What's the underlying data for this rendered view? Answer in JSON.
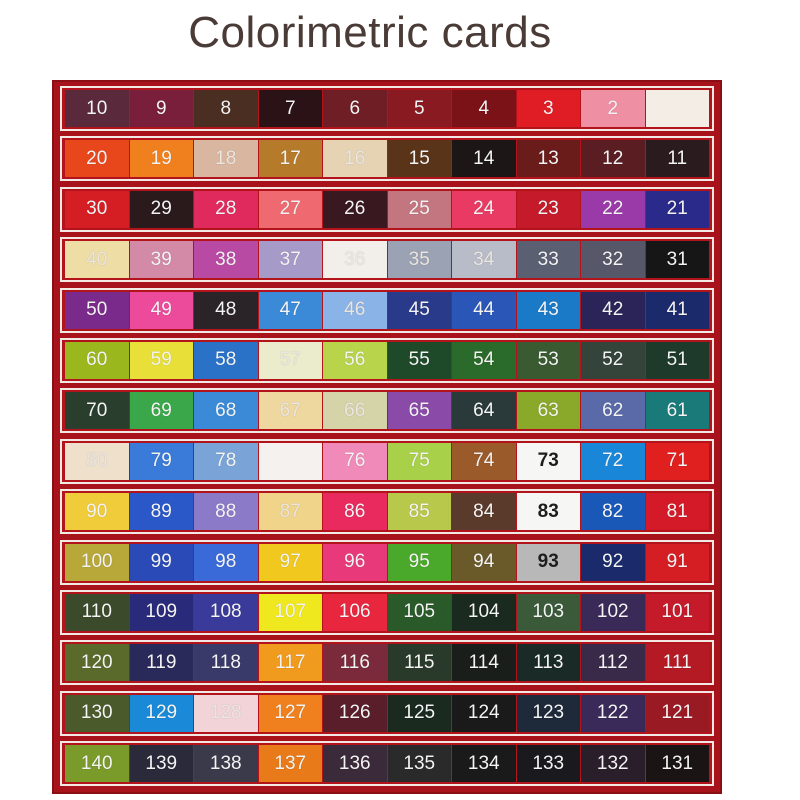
{
  "title": "Colorimetric cards",
  "board_color": "#a8121a",
  "rows": [
    [
      {
        "n": "10",
        "c": "#5a2a3c"
      },
      {
        "n": "9",
        "c": "#7a1f3b"
      },
      {
        "n": "8",
        "c": "#4a2e22"
      },
      {
        "n": "7",
        "c": "#2a1216"
      },
      {
        "n": "6",
        "c": "#6e1e24"
      },
      {
        "n": "5",
        "c": "#8a1a22"
      },
      {
        "n": "4",
        "c": "#7a1218"
      },
      {
        "n": "3",
        "c": "#e01c24"
      },
      {
        "n": "2",
        "c": "#ee8fa4"
      },
      {
        "n": "",
        "c": "#f3ede6"
      }
    ],
    [
      {
        "n": "20",
        "c": "#e8471c"
      },
      {
        "n": "19",
        "c": "#f0801e"
      },
      {
        "n": "18",
        "c": "#d9b6a0"
      },
      {
        "n": "17",
        "c": "#b57a2a"
      },
      {
        "n": "16",
        "c": "#e5d3b4"
      },
      {
        "n": "15",
        "c": "#5a3418"
      },
      {
        "n": "14",
        "c": "#1c1616"
      },
      {
        "n": "13",
        "c": "#6a1c1a"
      },
      {
        "n": "12",
        "c": "#5a1e22"
      },
      {
        "n": "11",
        "c": "#2a1c1e"
      }
    ],
    [
      {
        "n": "30",
        "c": "#d41e24"
      },
      {
        "n": "29",
        "c": "#2a1a1c"
      },
      {
        "n": "28",
        "c": "#e02a5e"
      },
      {
        "n": "27",
        "c": "#ee6a70"
      },
      {
        "n": "26",
        "c": "#3a1820"
      },
      {
        "n": "25",
        "c": "#c47680"
      },
      {
        "n": "24",
        "c": "#e83a62"
      },
      {
        "n": "23",
        "c": "#c41a2a"
      },
      {
        "n": "22",
        "c": "#9a3aa8"
      },
      {
        "n": "21",
        "c": "#2a2a8a"
      }
    ],
    [
      {
        "n": "40",
        "c": "#eedda4"
      },
      {
        "n": "39",
        "c": "#d28aa6"
      },
      {
        "n": "38",
        "c": "#b84aa4"
      },
      {
        "n": "37",
        "c": "#a69ac8"
      },
      {
        "n": "36",
        "c": "#f2efea"
      },
      {
        "n": "35",
        "c": "#9aa2b4"
      },
      {
        "n": "34",
        "c": "#b8bcc8"
      },
      {
        "n": "33",
        "c": "#5a6072"
      },
      {
        "n": "32",
        "c": "#56586a"
      },
      {
        "n": "31",
        "c": "#161616"
      }
    ],
    [
      {
        "n": "50",
        "c": "#7a2a8a"
      },
      {
        "n": "49",
        "c": "#ec4a9a"
      },
      {
        "n": "48",
        "c": "#2a2428"
      },
      {
        "n": "47",
        "c": "#3a8ad8"
      },
      {
        "n": "46",
        "c": "#8ab4e8"
      },
      {
        "n": "45",
        "c": "#2a3a8a"
      },
      {
        "n": "44",
        "c": "#2a56b8"
      },
      {
        "n": "43",
        "c": "#1a7ac8"
      },
      {
        "n": "42",
        "c": "#2a2458"
      },
      {
        "n": "41",
        "c": "#1a2a6a"
      }
    ],
    [
      {
        "n": "60",
        "c": "#9ab81e"
      },
      {
        "n": "59",
        "c": "#e8e038"
      },
      {
        "n": "58",
        "c": "#2a72c8"
      },
      {
        "n": "57",
        "c": "#eaeccc"
      },
      {
        "n": "56",
        "c": "#b8d44a"
      },
      {
        "n": "55",
        "c": "#1e4a2a"
      },
      {
        "n": "54",
        "c": "#2a6a2a"
      },
      {
        "n": "53",
        "c": "#3a5a32"
      },
      {
        "n": "52",
        "c": "#34443a"
      },
      {
        "n": "51",
        "c": "#1e3a2a"
      }
    ],
    [
      {
        "n": "70",
        "c": "#2a3e2e"
      },
      {
        "n": "69",
        "c": "#3aa84a"
      },
      {
        "n": "68",
        "c": "#3a8ad8"
      },
      {
        "n": "67",
        "c": "#eed8a0"
      },
      {
        "n": "66",
        "c": "#d4d4a8"
      },
      {
        "n": "65",
        "c": "#8a4aa8"
      },
      {
        "n": "64",
        "c": "#2a3a3a"
      },
      {
        "n": "63",
        "c": "#8aa82a"
      },
      {
        "n": "62",
        "c": "#5a6aa8"
      },
      {
        "n": "61",
        "c": "#1a7a7a"
      }
    ],
    [
      {
        "n": "80",
        "c": "#efe0cc"
      },
      {
        "n": "79",
        "c": "#3a7ad8"
      },
      {
        "n": "78",
        "c": "#7aa4d8"
      },
      {
        "n": "",
        "c": "#f4f1ee"
      },
      {
        "n": "76",
        "c": "#f08ab8"
      },
      {
        "n": "75",
        "c": "#a8d048"
      },
      {
        "n": "74",
        "c": "#9a5a2a"
      },
      {
        "n": "73",
        "c": "#f6f6f4",
        "dark": true
      },
      {
        "n": "72",
        "c": "#1a86d8"
      },
      {
        "n": "71",
        "c": "#e0201e"
      }
    ],
    [
      {
        "n": "90",
        "c": "#f0cc3a"
      },
      {
        "n": "89",
        "c": "#2a58c8"
      },
      {
        "n": "88",
        "c": "#8a7ac8"
      },
      {
        "n": "87",
        "c": "#f0d48a"
      },
      {
        "n": "86",
        "c": "#e82a5e"
      },
      {
        "n": "85",
        "c": "#b8c84a"
      },
      {
        "n": "84",
        "c": "#5a3a2a"
      },
      {
        "n": "83",
        "c": "#f6f6f4",
        "dark": true
      },
      {
        "n": "82",
        "c": "#1a58b8"
      },
      {
        "n": "81",
        "c": "#d41a28"
      }
    ],
    [
      {
        "n": "100",
        "c": "#b8a83a"
      },
      {
        "n": "99",
        "c": "#2a4ab8"
      },
      {
        "n": "98",
        "c": "#3a6ad8"
      },
      {
        "n": "97",
        "c": "#f0c81e"
      },
      {
        "n": "96",
        "c": "#e83a7a"
      },
      {
        "n": "95",
        "c": "#4aa82a"
      },
      {
        "n": "94",
        "c": "#6a5a2a"
      },
      {
        "n": "93",
        "c": "#b8b8b8",
        "dark": true
      },
      {
        "n": "92",
        "c": "#1a2a6a"
      },
      {
        "n": "91",
        "c": "#d41e24"
      }
    ],
    [
      {
        "n": "110",
        "c": "#3a4a2a"
      },
      {
        "n": "109",
        "c": "#2a2a7a"
      },
      {
        "n": "108",
        "c": "#3a3a9a"
      },
      {
        "n": "107",
        "c": "#f0e81e"
      },
      {
        "n": "106",
        "c": "#e8263e"
      },
      {
        "n": "105",
        "c": "#2a5a2a"
      },
      {
        "n": "104",
        "c": "#1a2a1e"
      },
      {
        "n": "103",
        "c": "#3a5a3a"
      },
      {
        "n": "102",
        "c": "#3a2a58"
      },
      {
        "n": "101",
        "c": "#c41a2a"
      }
    ],
    [
      {
        "n": "120",
        "c": "#5a6a2a"
      },
      {
        "n": "119",
        "c": "#2a2a5a"
      },
      {
        "n": "118",
        "c": "#3a3a6a"
      },
      {
        "n": "117",
        "c": "#f09a1e"
      },
      {
        "n": "116",
        "c": "#7a2a3a"
      },
      {
        "n": "115",
        "c": "#2a3a2a"
      },
      {
        "n": "114",
        "c": "#1a1e1a"
      },
      {
        "n": "113",
        "c": "#1a2a26"
      },
      {
        "n": "112",
        "c": "#3a2a4a"
      },
      {
        "n": "111",
        "c": "#b41a24"
      }
    ],
    [
      {
        "n": "130",
        "c": "#4a5a2a"
      },
      {
        "n": "129",
        "c": "#1a8ad8"
      },
      {
        "n": "128",
        "c": "#f2d4d8"
      },
      {
        "n": "127",
        "c": "#f0801e"
      },
      {
        "n": "126",
        "c": "#5a1e2a"
      },
      {
        "n": "125",
        "c": "#1a2a1e"
      },
      {
        "n": "124",
        "c": "#1a1a1a"
      },
      {
        "n": "123",
        "c": "#1e2a3a"
      },
      {
        "n": "122",
        "c": "#3a2a5a"
      },
      {
        "n": "121",
        "c": "#9a1a24"
      }
    ],
    [
      {
        "n": "140",
        "c": "#7a9a2a"
      },
      {
        "n": "139",
        "c": "#2a2a3a"
      },
      {
        "n": "138",
        "c": "#3a3a4a"
      },
      {
        "n": "137",
        "c": "#e87a1a"
      },
      {
        "n": "136",
        "c": "#3a2a3a"
      },
      {
        "n": "135",
        "c": "#2a2a2a"
      },
      {
        "n": "134",
        "c": "#1a1a1a"
      },
      {
        "n": "133",
        "c": "#1a1a1e"
      },
      {
        "n": "132",
        "c": "#2a1e2a"
      },
      {
        "n": "131",
        "c": "#1a1414"
      }
    ]
  ]
}
